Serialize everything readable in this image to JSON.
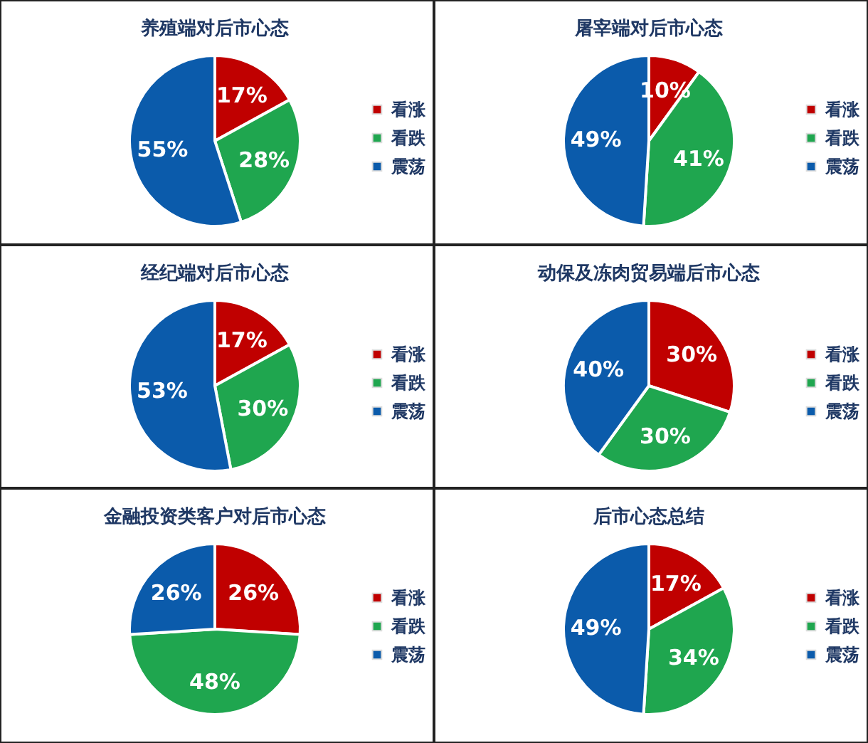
{
  "chart_data": [
    {
      "type": "pie",
      "title": "养殖端对后市心态",
      "categories": [
        "看涨",
        "看跌",
        "震荡"
      ],
      "values": [
        17,
        28,
        55
      ],
      "value_labels": [
        "17%",
        "28%",
        "55%"
      ],
      "colors": [
        "#c00000",
        "#1fa64f",
        "#0b5bab"
      ],
      "legend": "right"
    },
    {
      "type": "pie",
      "title": "屠宰端对后市心态",
      "categories": [
        "看涨",
        "看跌",
        "震荡"
      ],
      "values": [
        10,
        41,
        49
      ],
      "value_labels": [
        "10%",
        "41%",
        "49%"
      ],
      "colors": [
        "#c00000",
        "#1fa64f",
        "#0b5bab"
      ],
      "legend": "right"
    },
    {
      "type": "pie",
      "title": "经纪端对后市心态",
      "categories": [
        "看涨",
        "看跌",
        "震荡"
      ],
      "values": [
        17,
        30,
        53
      ],
      "value_labels": [
        "17%",
        "30%",
        "53%"
      ],
      "colors": [
        "#c00000",
        "#1fa64f",
        "#0b5bab"
      ],
      "legend": "right"
    },
    {
      "type": "pie",
      "title": "动保及冻肉贸易端后市心态",
      "categories": [
        "看涨",
        "看跌",
        "震荡"
      ],
      "values": [
        30,
        30,
        40
      ],
      "value_labels": [
        "30%",
        "30%",
        "40%"
      ],
      "colors": [
        "#c00000",
        "#1fa64f",
        "#0b5bab"
      ],
      "legend": "right"
    },
    {
      "type": "pie",
      "title": "金融投资类客户对后市心态",
      "categories": [
        "看涨",
        "看跌",
        "震荡"
      ],
      "values": [
        26,
        48,
        26
      ],
      "value_labels": [
        "26%",
        "48%",
        "26%"
      ],
      "colors": [
        "#c00000",
        "#1fa64f",
        "#0b5bab"
      ],
      "legend": "right"
    },
    {
      "type": "pie",
      "title": "后市心态总结",
      "categories": [
        "看涨",
        "看跌",
        "震荡"
      ],
      "values": [
        17,
        34,
        49
      ],
      "value_labels": [
        "17%",
        "34%",
        "49%"
      ],
      "colors": [
        "#c00000",
        "#1fa64f",
        "#0b5bab"
      ],
      "legend": "right"
    }
  ]
}
